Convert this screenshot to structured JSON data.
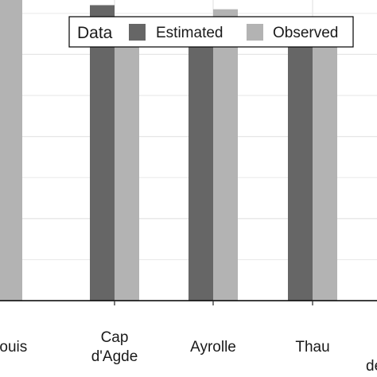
{
  "chart_data": {
    "type": "bar",
    "categories": [
      "St−Louis",
      "Cap d'Agde",
      "Ayrolle",
      "Thau",
      "de"
    ],
    "category_lines": [
      [
        "St−Louis"
      ],
      [
        "Cap",
        "d'Agde"
      ],
      [
        "Ayrolle"
      ],
      [
        "Thau"
      ],
      [
        "de"
      ]
    ],
    "series": [
      {
        "name": "Estimated",
        "color": "#666666",
        "values": [
          4.6,
          3.6,
          3.4,
          3.2,
          null
        ]
      },
      {
        "name": "Observed",
        "color": "#b3b3b3",
        "values": [
          3.7,
          3.4,
          3.55,
          3.4,
          null
        ]
      }
    ],
    "ylim": [
      0,
      5.0
    ],
    "xlabel": "",
    "ylabel": "",
    "grid": true,
    "legend": {
      "title": "Data",
      "position": "top-right"
    },
    "colors": {
      "grid": "#e6e6e6",
      "axis": "#000000",
      "background": "#ffffff"
    }
  }
}
